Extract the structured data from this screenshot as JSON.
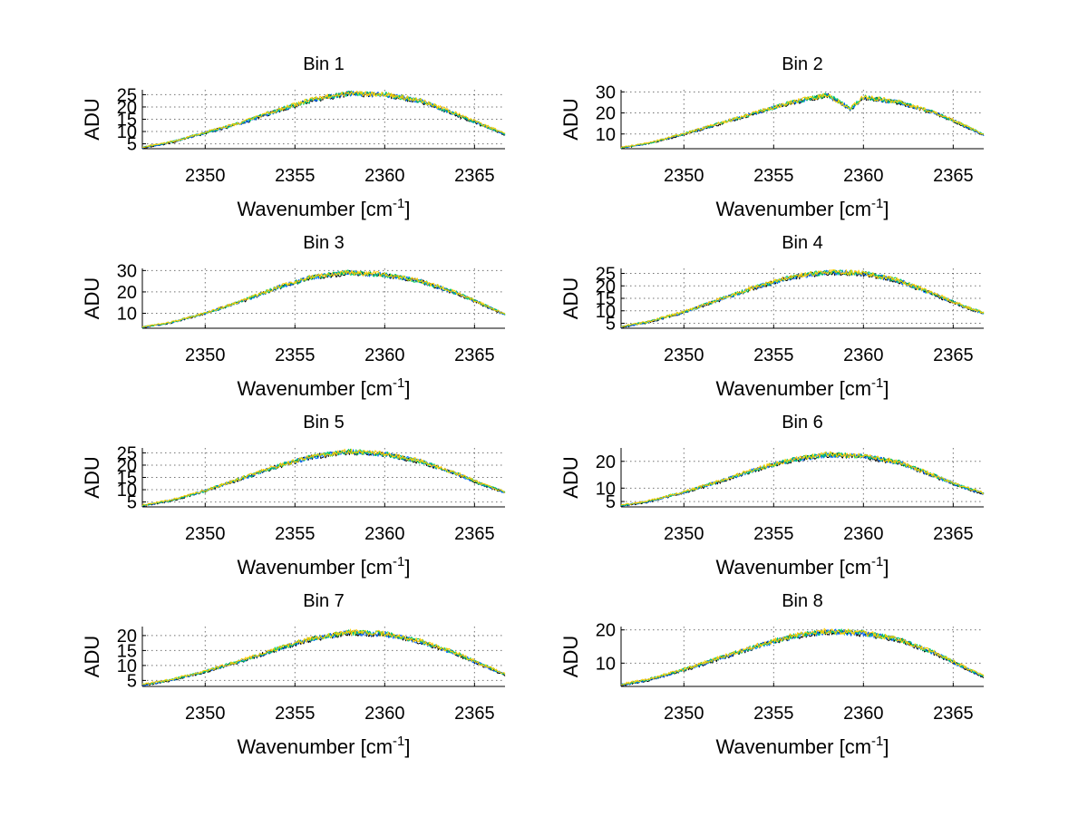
{
  "chart_data": [
    {
      "type": "line",
      "title": "Bin 1",
      "xlabel": "Wavenumber",
      "xlabel_unit_base": "cm",
      "xlabel_unit_exp": "-1",
      "ylabel": "ADU",
      "xlim": [
        2346.5,
        2366.7
      ],
      "ylim": [
        3,
        27
      ],
      "xticks": [
        2350,
        2355,
        2360,
        2365
      ],
      "yticks": [
        5,
        10,
        15,
        20,
        25
      ],
      "series_colors": [
        "#000000",
        "#0066ff",
        "#00cc66",
        "#ffcc00"
      ],
      "x": [
        2346.5,
        2348,
        2350,
        2352,
        2354,
        2356,
        2358,
        2360,
        2362,
        2364,
        2365.5,
        2366.7
      ],
      "y": [
        3.5,
        5.5,
        9.5,
        13.5,
        18.5,
        23,
        25.5,
        25,
        22.5,
        17,
        12.5,
        9
      ]
    },
    {
      "type": "line",
      "title": "Bin 2",
      "xlabel": "Wavenumber",
      "xlabel_unit_base": "cm",
      "xlabel_unit_exp": "-1",
      "ylabel": "ADU",
      "xlim": [
        2346.5,
        2366.7
      ],
      "ylim": [
        3,
        31
      ],
      "xticks": [
        2350,
        2355,
        2360,
        2365
      ],
      "yticks": [
        10,
        20,
        30
      ],
      "series_colors": [
        "#000000",
        "#0066ff",
        "#00cc66",
        "#ffcc00"
      ],
      "x": [
        2346.5,
        2348,
        2350,
        2352,
        2354,
        2356,
        2358,
        2359.3,
        2360,
        2362,
        2364,
        2365.5,
        2366.7
      ],
      "y": [
        3.5,
        5.5,
        10,
        15,
        20,
        25,
        28.5,
        22,
        27.5,
        25,
        20,
        14.5,
        9.5
      ]
    },
    {
      "type": "line",
      "title": "Bin 3",
      "xlabel": "Wavenumber",
      "xlabel_unit_base": "cm",
      "xlabel_unit_exp": "-1",
      "ylabel": "ADU",
      "xlim": [
        2346.5,
        2366.7
      ],
      "ylim": [
        3,
        31
      ],
      "xticks": [
        2350,
        2355,
        2360,
        2365
      ],
      "yticks": [
        10,
        20,
        30
      ],
      "series_colors": [
        "#000000",
        "#0066ff",
        "#00cc66",
        "#ffcc00"
      ],
      "x": [
        2346.5,
        2348,
        2350,
        2352,
        2354,
        2356,
        2358,
        2360,
        2362,
        2364,
        2365.5,
        2366.7
      ],
      "y": [
        3.5,
        5.5,
        10,
        15.5,
        22,
        27,
        29,
        28,
        25,
        19.5,
        14,
        9.5
      ]
    },
    {
      "type": "line",
      "title": "Bin 4",
      "xlabel": "Wavenumber",
      "xlabel_unit_base": "cm",
      "xlabel_unit_exp": "-1",
      "ylabel": "ADU",
      "xlim": [
        2346.5,
        2366.7
      ],
      "ylim": [
        3,
        27
      ],
      "xticks": [
        2350,
        2355,
        2360,
        2365
      ],
      "yticks": [
        5,
        10,
        15,
        20,
        25
      ],
      "series_colors": [
        "#000000",
        "#0066ff",
        "#00cc66",
        "#ffcc00"
      ],
      "x": [
        2346.5,
        2348,
        2350,
        2352,
        2354,
        2356,
        2358,
        2360,
        2362,
        2364,
        2365.5,
        2366.7
      ],
      "y": [
        3.5,
        5.5,
        9.5,
        14.5,
        19.5,
        23.5,
        25.5,
        25,
        22,
        16.5,
        12,
        9
      ]
    },
    {
      "type": "line",
      "title": "Bin 5",
      "xlabel": "Wavenumber",
      "xlabel_unit_base": "cm",
      "xlabel_unit_exp": "-1",
      "ylabel": "ADU",
      "xlim": [
        2346.5,
        2366.7
      ],
      "ylim": [
        3,
        27
      ],
      "xticks": [
        2350,
        2355,
        2360,
        2365
      ],
      "yticks": [
        5,
        10,
        15,
        20,
        25
      ],
      "series_colors": [
        "#000000",
        "#0066ff",
        "#00cc66",
        "#ffcc00"
      ],
      "x": [
        2346.5,
        2348,
        2350,
        2352,
        2354,
        2356,
        2358,
        2360,
        2362,
        2364,
        2365.5,
        2366.7
      ],
      "y": [
        3.5,
        5.5,
        9.5,
        14.5,
        19.5,
        23.5,
        25.5,
        24.5,
        21.5,
        16.5,
        12,
        9
      ]
    },
    {
      "type": "line",
      "title": "Bin 6",
      "xlabel": "Wavenumber",
      "xlabel_unit_base": "cm",
      "xlabel_unit_exp": "-1",
      "ylabel": "ADU",
      "xlim": [
        2346.5,
        2366.7
      ],
      "ylim": [
        3,
        25
      ],
      "xticks": [
        2350,
        2355,
        2360,
        2365
      ],
      "yticks": [
        5,
        10,
        20
      ],
      "series_colors": [
        "#000000",
        "#0066ff",
        "#00cc66",
        "#ffcc00"
      ],
      "x": [
        2346.5,
        2348,
        2350,
        2352,
        2354,
        2356,
        2358,
        2360,
        2362,
        2364,
        2365.5,
        2366.7
      ],
      "y": [
        3.5,
        5,
        8.5,
        12.5,
        17,
        20.5,
        22.5,
        22,
        19.5,
        14.5,
        10.5,
        8
      ]
    },
    {
      "type": "line",
      "title": "Bin 7",
      "xlabel": "Wavenumber",
      "xlabel_unit_base": "cm",
      "xlabel_unit_exp": "-1",
      "ylabel": "ADU",
      "xlim": [
        2346.5,
        2366.7
      ],
      "ylim": [
        3,
        23
      ],
      "xticks": [
        2350,
        2355,
        2360,
        2365
      ],
      "yticks": [
        5,
        10,
        15,
        20
      ],
      "series_colors": [
        "#000000",
        "#0066ff",
        "#00cc66",
        "#ffcc00"
      ],
      "x": [
        2346.5,
        2348,
        2350,
        2352,
        2354,
        2356,
        2358,
        2360,
        2362,
        2364,
        2365.5,
        2366.7
      ],
      "y": [
        3.5,
        5,
        8,
        11.5,
        15.5,
        19,
        21,
        20.5,
        18,
        14,
        10,
        7
      ]
    },
    {
      "type": "line",
      "title": "Bin 8",
      "xlabel": "Wavenumber",
      "xlabel_unit_base": "cm",
      "xlabel_unit_exp": "-1",
      "ylabel": "ADU",
      "xlim": [
        2346.5,
        2366.7
      ],
      "ylim": [
        3,
        21
      ],
      "xticks": [
        2350,
        2355,
        2360,
        2365
      ],
      "yticks": [
        10,
        20
      ],
      "series_colors": [
        "#000000",
        "#0066ff",
        "#00cc66",
        "#ffcc00"
      ],
      "x": [
        2346.5,
        2348,
        2350,
        2352,
        2354,
        2356,
        2358,
        2360,
        2362,
        2364,
        2365.5,
        2366.7
      ],
      "y": [
        3.5,
        5,
        8,
        11.5,
        15,
        18,
        19.5,
        19,
        17,
        13,
        9,
        6
      ]
    }
  ]
}
